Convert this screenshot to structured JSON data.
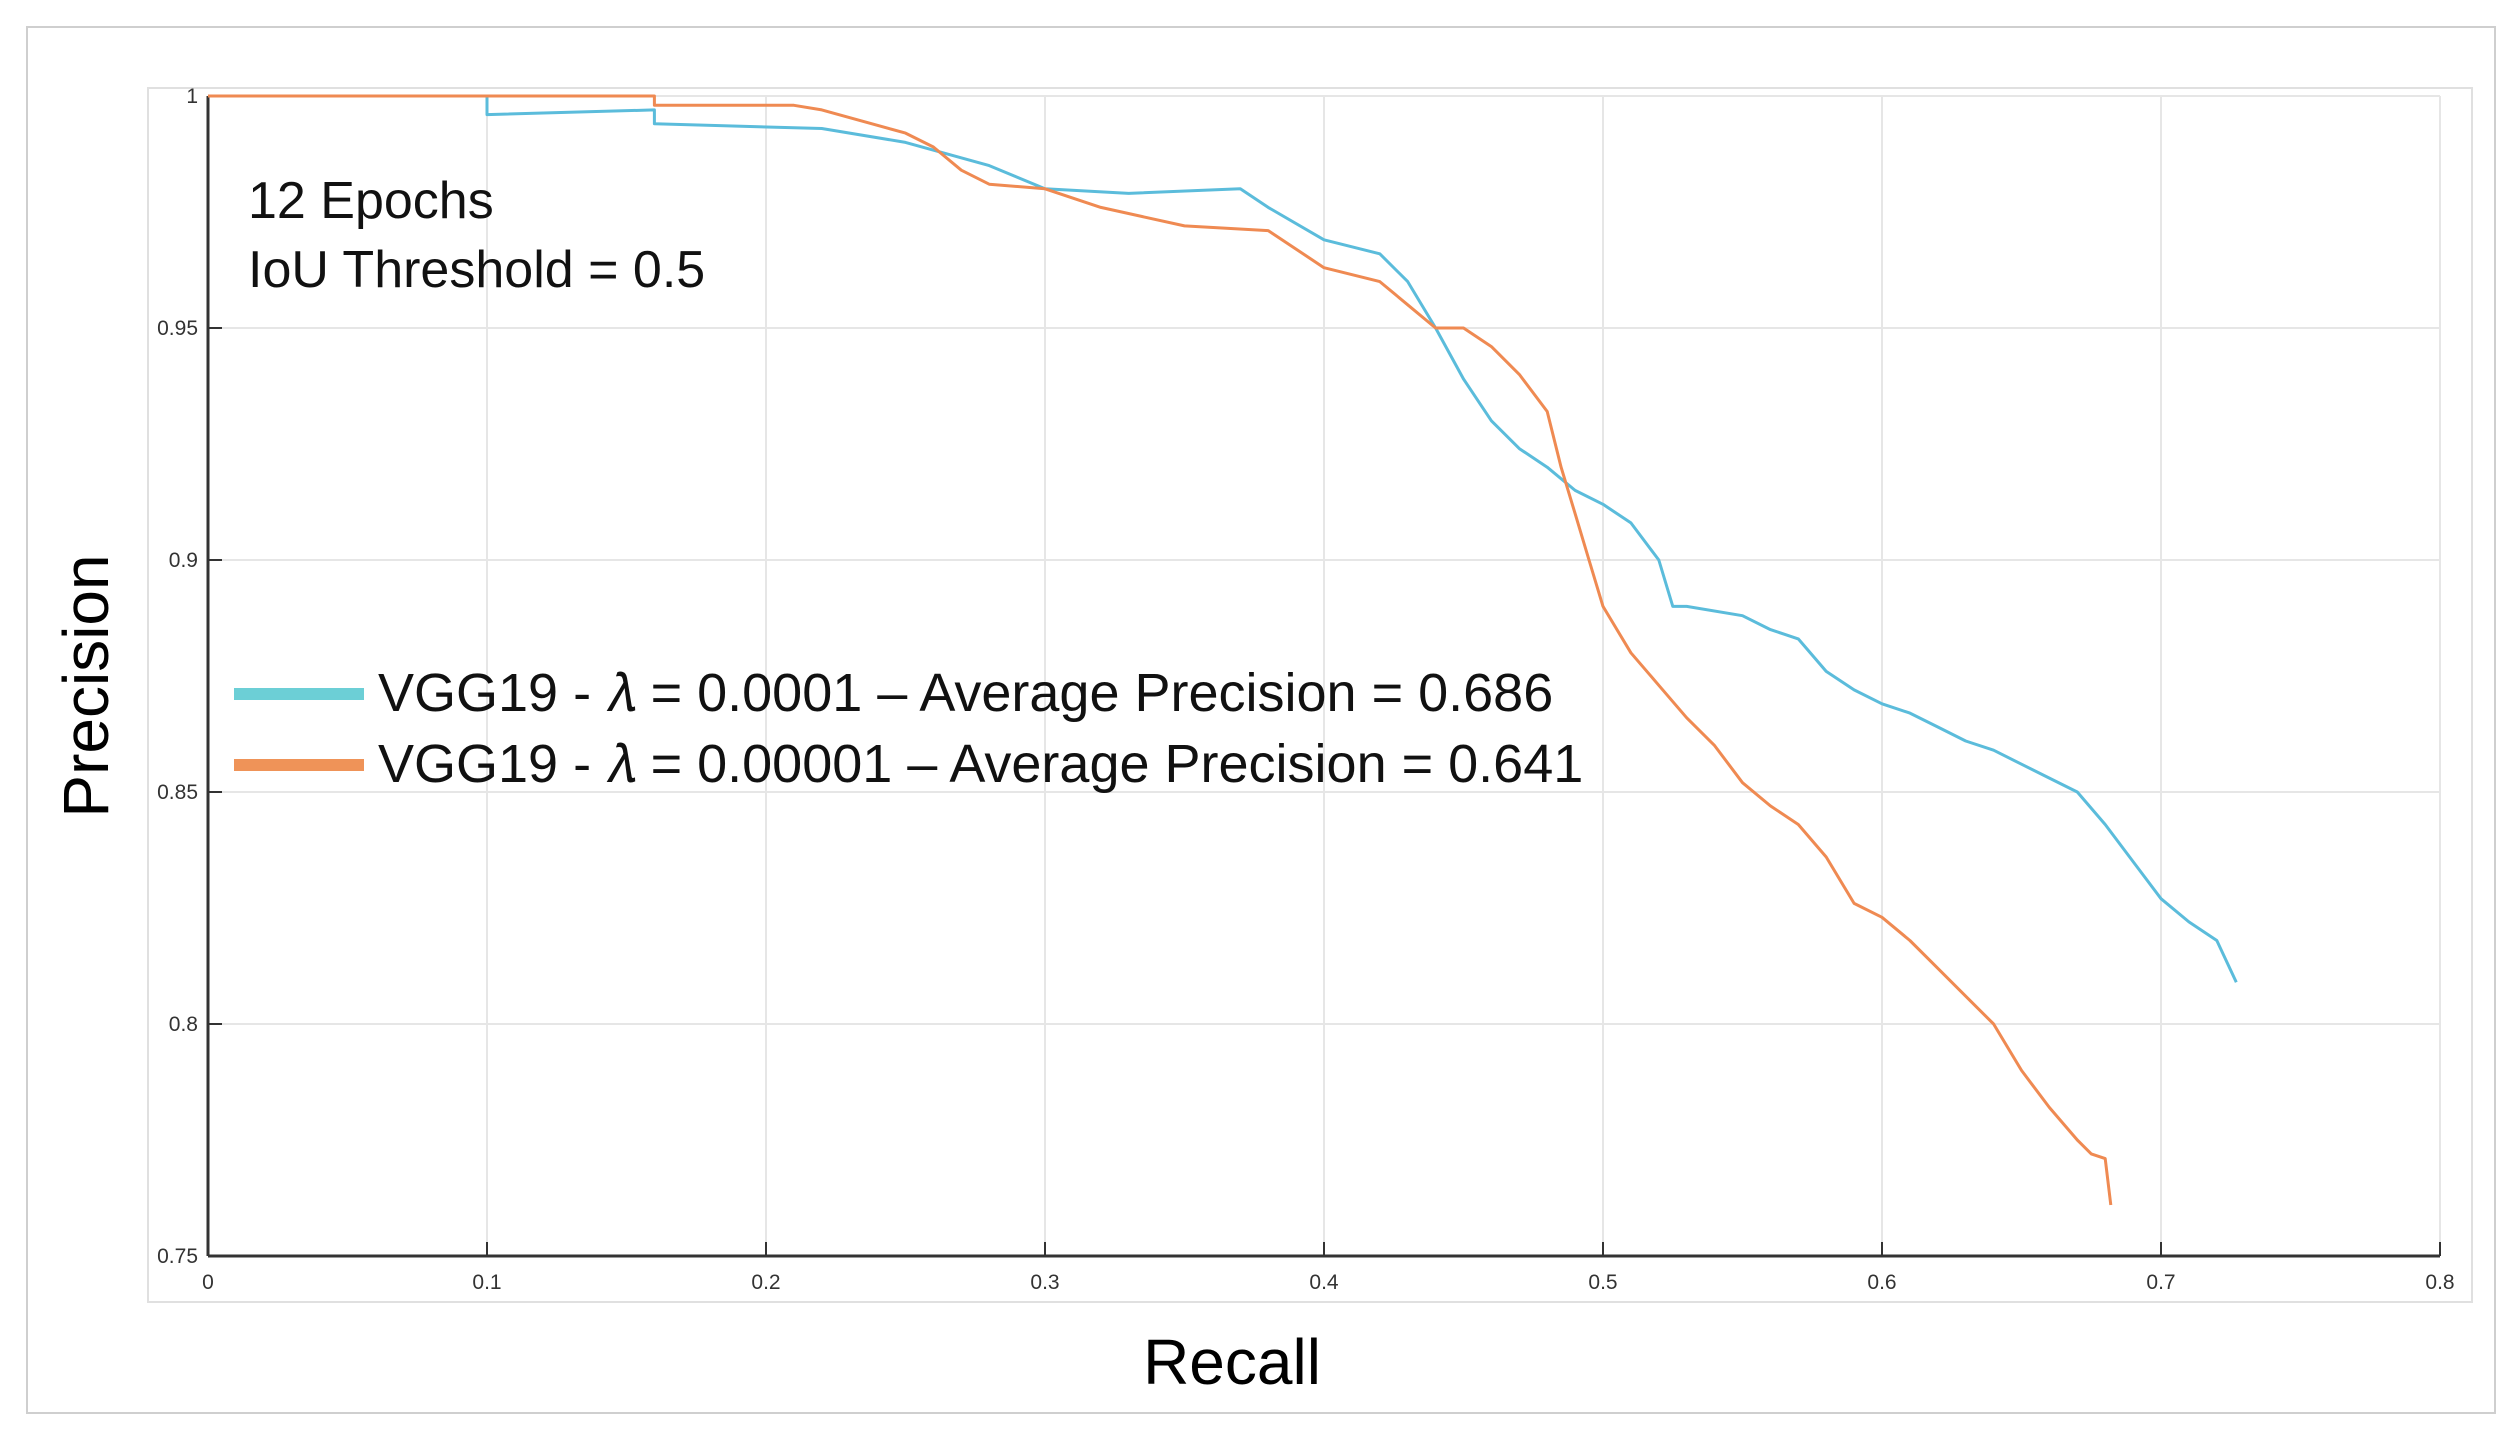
{
  "chart_data": {
    "type": "line",
    "title": "",
    "xlabel": "Recall",
    "ylabel": "Precision",
    "xlim": [
      0,
      0.8
    ],
    "ylim": [
      0.75,
      1
    ],
    "grid": true,
    "xticks": [
      {
        "v": 0,
        "label": "0"
      },
      {
        "v": 0.1,
        "label": "0.1"
      },
      {
        "v": 0.2,
        "label": "0.2"
      },
      {
        "v": 0.3,
        "label": "0.3"
      },
      {
        "v": 0.4,
        "label": "0.4"
      },
      {
        "v": 0.5,
        "label": "0.5"
      },
      {
        "v": 0.6,
        "label": "0.6"
      },
      {
        "v": 0.7,
        "label": "0.7"
      },
      {
        "v": 0.8,
        "label": "0.8"
      }
    ],
    "yticks": [
      {
        "v": 0.75,
        "label": "0.75"
      },
      {
        "v": 0.8,
        "label": "0.8"
      },
      {
        "v": 0.85,
        "label": "0.85"
      },
      {
        "v": 0.9,
        "label": "0.9"
      },
      {
        "v": 0.95,
        "label": "0.95"
      },
      {
        "v": 1,
        "label": "1"
      }
    ],
    "annotations": [
      "12 Epochs",
      "IoU Threshold = 0.5"
    ],
    "legend_position": "center-left",
    "series": [
      {
        "name": "VGG19 - λ = 0.0001",
        "label": "VGG19 - 𝜆 = 0.0001   –  Average Precision = 0.686",
        "color": "#5bbcdb",
        "legend_color": "#6ccfd6",
        "x": [
          0,
          0.1,
          0.1,
          0.16,
          0.16,
          0.22,
          0.25,
          0.28,
          0.3,
          0.33,
          0.37,
          0.38,
          0.4,
          0.42,
          0.43,
          0.44,
          0.45,
          0.46,
          0.47,
          0.48,
          0.49,
          0.5,
          0.51,
          0.52,
          0.525,
          0.53,
          0.55,
          0.56,
          0.57,
          0.58,
          0.59,
          0.6,
          0.61,
          0.62,
          0.63,
          0.64,
          0.65,
          0.66,
          0.67,
          0.68,
          0.69,
          0.7,
          0.71,
          0.72,
          0.727
        ],
        "y": [
          1,
          1,
          0.996,
          0.997,
          0.994,
          0.993,
          0.99,
          0.985,
          0.98,
          0.979,
          0.98,
          0.976,
          0.969,
          0.966,
          0.96,
          0.95,
          0.939,
          0.93,
          0.924,
          0.92,
          0.915,
          0.912,
          0.908,
          0.9,
          0.89,
          0.89,
          0.888,
          0.885,
          0.883,
          0.876,
          0.872,
          0.869,
          0.867,
          0.864,
          0.861,
          0.859,
          0.856,
          0.853,
          0.85,
          0.843,
          0.835,
          0.827,
          0.822,
          0.818,
          0.809
        ]
      },
      {
        "name": "VGG19 - λ = 0.00001",
        "label": "VGG19 - 𝜆 = 0.00001 –  Average Precision = 0.641",
        "color": "#ef8a52",
        "legend_color": "#ef9358",
        "x": [
          0,
          0.16,
          0.16,
          0.21,
          0.22,
          0.25,
          0.26,
          0.27,
          0.28,
          0.3,
          0.32,
          0.35,
          0.38,
          0.4,
          0.42,
          0.43,
          0.44,
          0.45,
          0.46,
          0.47,
          0.48,
          0.485,
          0.49,
          0.495,
          0.5,
          0.51,
          0.52,
          0.53,
          0.54,
          0.55,
          0.56,
          0.57,
          0.58,
          0.59,
          0.6,
          0.61,
          0.62,
          0.63,
          0.64,
          0.65,
          0.66,
          0.67,
          0.675,
          0.68,
          0.682
        ],
        "y": [
          1,
          1,
          0.998,
          0.998,
          0.997,
          0.992,
          0.989,
          0.984,
          0.981,
          0.98,
          0.976,
          0.972,
          0.971,
          0.963,
          0.96,
          0.955,
          0.95,
          0.95,
          0.946,
          0.94,
          0.932,
          0.92,
          0.91,
          0.9,
          0.89,
          0.88,
          0.873,
          0.866,
          0.86,
          0.852,
          0.847,
          0.843,
          0.836,
          0.826,
          0.823,
          0.818,
          0.812,
          0.806,
          0.8,
          0.79,
          0.782,
          0.775,
          0.772,
          0.771,
          0.761
        ]
      }
    ]
  }
}
